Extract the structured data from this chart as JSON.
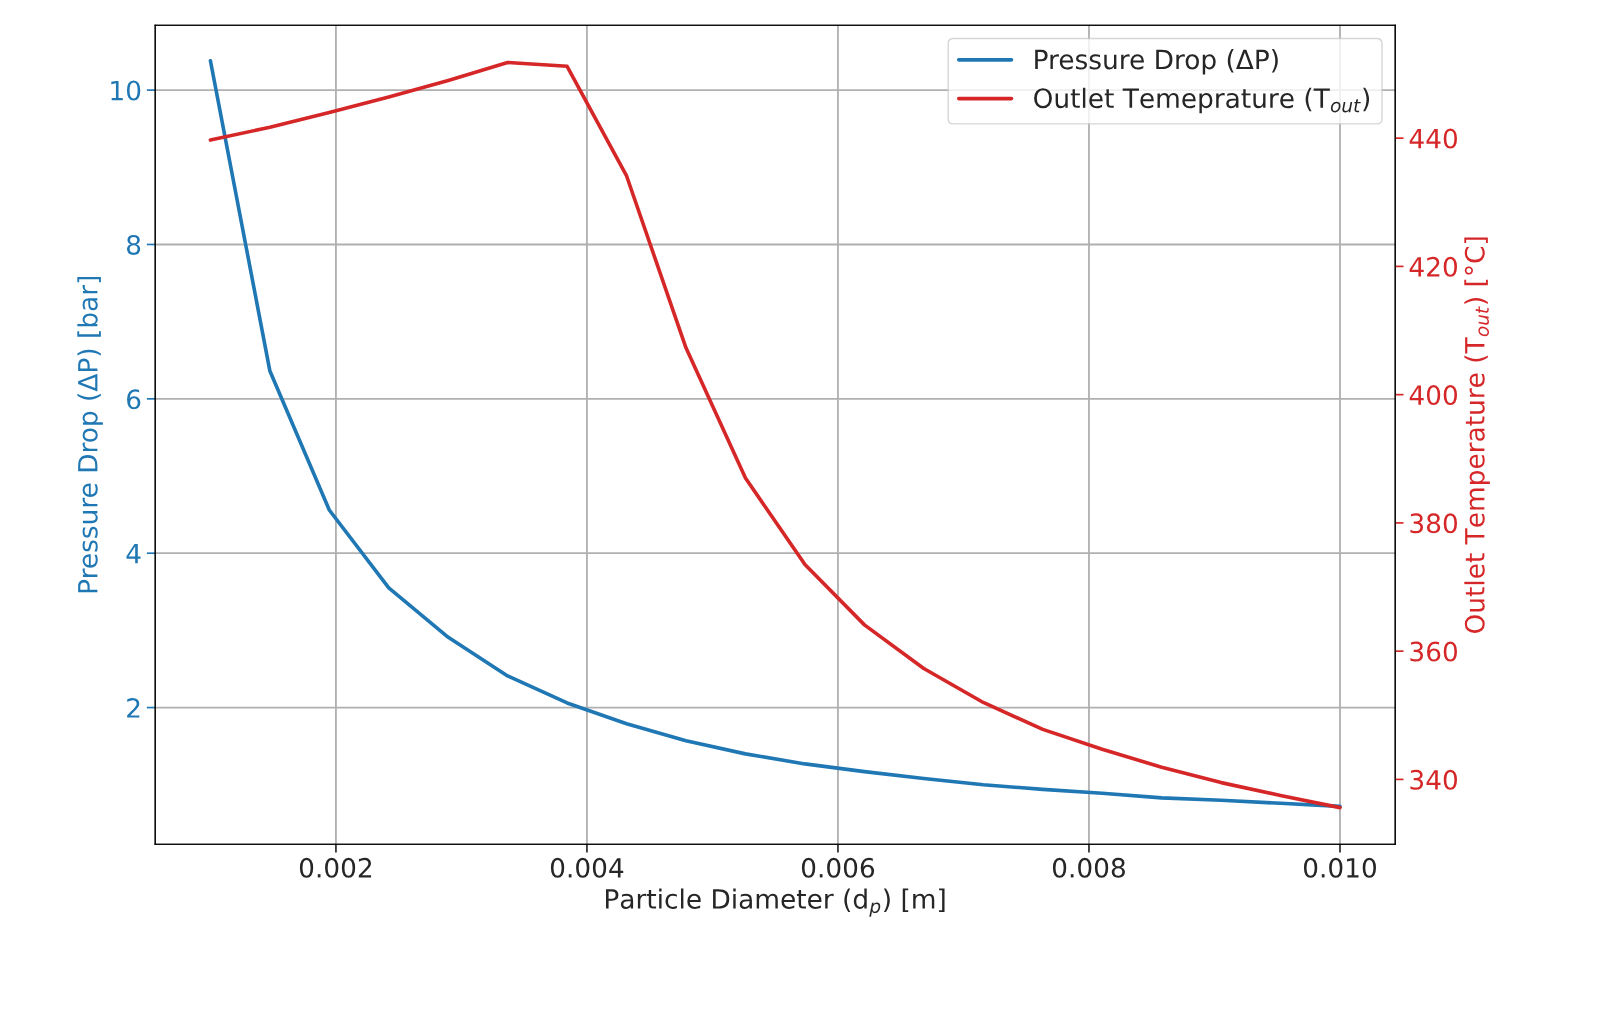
{
  "chart_data": {
    "type": "line",
    "xlabel": "Particle Diameter (d$_{p}$) [m]",
    "ylabel": "Pressure Drop (ΔP) [bar]",
    "y2label": "Outlet Temperature (T$_{out}$) [°C]",
    "x": [
      0.001,
      0.001474,
      0.001947,
      0.002421,
      0.002895,
      0.003368,
      0.003842,
      0.004316,
      0.004789,
      0.005263,
      0.005737,
      0.006211,
      0.006684,
      0.007158,
      0.007632,
      0.008105,
      0.008579,
      0.009053,
      0.009526,
      0.01
    ],
    "series": [
      {
        "name": "Pressure Drop (ΔP)",
        "color": "#1f77b4",
        "values": [
          10.38,
          6.36,
          4.56,
          3.55,
          2.91,
          2.41,
          2.06,
          1.79,
          1.57,
          1.4,
          1.27,
          1.17,
          1.08,
          1.0,
          0.94,
          0.89,
          0.83,
          0.8,
          0.76,
          0.72
        ]
      },
      {
        "name": "Outlet Temeprature (T$_{out}$)",
        "color": "#d62728",
        "axis": "y2",
        "values": [
          439.7,
          441.7,
          444.0,
          446.4,
          449.0,
          451.8,
          451.2,
          434.1,
          407.3,
          387.0,
          373.5,
          364.1,
          357.3,
          352.0,
          347.8,
          344.7,
          341.9,
          339.5,
          337.5,
          335.6
        ]
      }
    ],
    "xlim": [
      0.00056,
      0.01044
    ],
    "xticks": [
      {
        "value": 0.002,
        "label": "0.002"
      },
      {
        "value": 0.004,
        "label": "0.004"
      },
      {
        "value": 0.006,
        "label": "0.006"
      },
      {
        "value": 0.008,
        "label": "0.008"
      },
      {
        "value": 0.01,
        "label": "0.010"
      }
    ],
    "ylim": [
      0.23,
      10.84
    ],
    "yticks": [
      2,
      4,
      6,
      8,
      10
    ],
    "y2lim": [
      329.9,
      457.6
    ],
    "y2ticks": [
      340,
      360,
      380,
      400,
      420,
      440
    ],
    "grid": true,
    "legend": "top right",
    "line_style": "solid",
    "marker": "none"
  }
}
